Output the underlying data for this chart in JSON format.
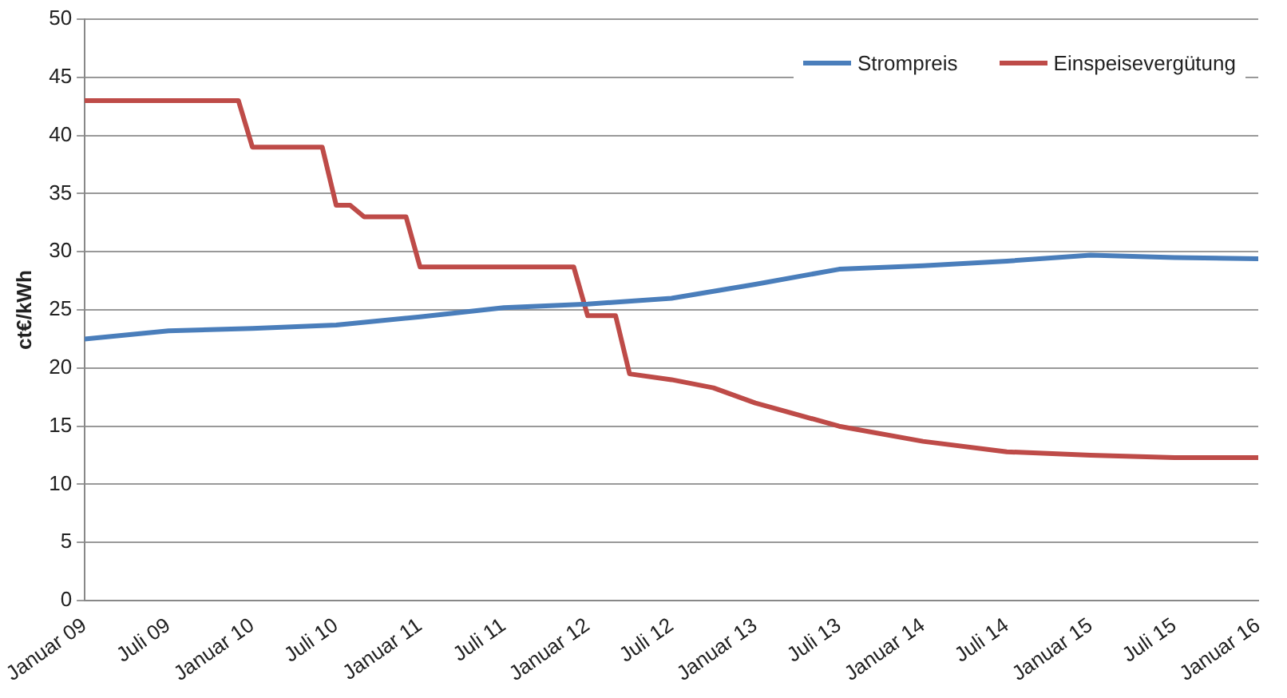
{
  "chart_data": {
    "type": "line",
    "ylabel": "ct€/kWh",
    "xlim": [
      "2009-01",
      "2016-01"
    ],
    "xticks": [
      {
        "value": "2009-01",
        "label": "Januar 09"
      },
      {
        "value": "2009-07",
        "label": "Juli 09"
      },
      {
        "value": "2010-01",
        "label": "Januar 10"
      },
      {
        "value": "2010-07",
        "label": "Juli 10"
      },
      {
        "value": "2011-01",
        "label": "Januar 11"
      },
      {
        "value": "2011-07",
        "label": "Juli 11"
      },
      {
        "value": "2012-01",
        "label": "Januar 12"
      },
      {
        "value": "2012-07",
        "label": "Juli 12"
      },
      {
        "value": "2013-01",
        "label": "Januar 13"
      },
      {
        "value": "2013-07",
        "label": "Juli 13"
      },
      {
        "value": "2014-01",
        "label": "Januar 14"
      },
      {
        "value": "2014-07",
        "label": "Juli 14"
      },
      {
        "value": "2015-01",
        "label": "Januar 15"
      },
      {
        "value": "2015-07",
        "label": "Juli 15"
      },
      {
        "value": "2016-01",
        "label": "Januar 16"
      }
    ],
    "ylim": [
      0,
      50
    ],
    "yticks": [
      0,
      5,
      10,
      15,
      20,
      25,
      30,
      35,
      40,
      45,
      50
    ],
    "grid": "y",
    "legend": "top right",
    "marker": "none",
    "line_style": "solid",
    "series": [
      {
        "name": "Strompreis",
        "color": "#4a7ebb",
        "x": [
          "2009-01",
          "2009-07",
          "2010-01",
          "2010-07",
          "2011-01",
          "2011-07",
          "2012-01",
          "2012-07",
          "2013-01",
          "2013-07",
          "2014-01",
          "2014-07",
          "2015-01",
          "2015-07",
          "2016-01"
        ],
        "values": [
          22.5,
          23.2,
          23.4,
          23.7,
          24.4,
          25.2,
          25.5,
          26,
          27.2,
          28.5,
          28.8,
          29.2,
          29.7,
          29.5,
          29.4
        ]
      },
      {
        "name": "Einspeisevergütung",
        "color": "#be4b48",
        "x": [
          "2009-01",
          "2009-12",
          "2010-01",
          "2010-06",
          "2010-07",
          "2010-08",
          "2010-09",
          "2010-12",
          "2011-01",
          "2011-12",
          "2012-01",
          "2012-03",
          "2012-04",
          "2012-07",
          "2012-10",
          "2013-01",
          "2013-07",
          "2014-01",
          "2014-07",
          "2015-01",
          "2015-07",
          "2016-01"
        ],
        "values": [
          43,
          43,
          39,
          39,
          34,
          34,
          33,
          33,
          28.7,
          28.7,
          24.5,
          24.5,
          19.5,
          19,
          18.3,
          17,
          15,
          13.7,
          12.8,
          12.5,
          12.3,
          12.3
        ]
      }
    ]
  }
}
